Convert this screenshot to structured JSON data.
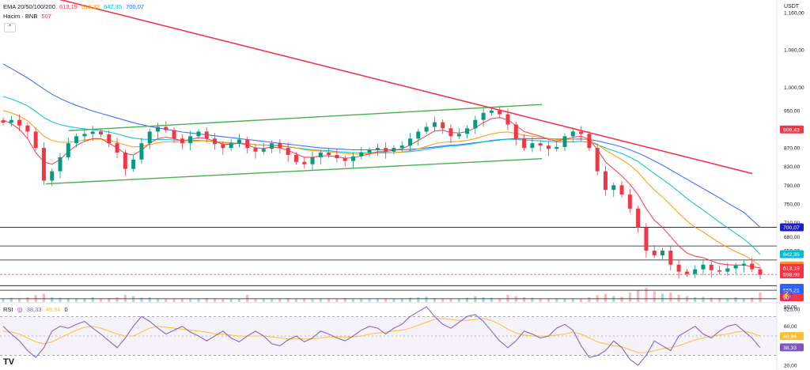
{
  "legend": {
    "ema_title": "EMA 20/50/100/200",
    "ema20": "613,19",
    "ema50": "618,32",
    "ema100": "642,35",
    "ema200": "700,07",
    "volume_title": "Hacim · BNB",
    "volume_value": "507",
    "rsi_title": "RSI",
    "rsi_value": "38,33",
    "rsi_ma_value": "49,94",
    "rsi_extra": "0"
  },
  "collapse_icon": "chevron-up-icon",
  "currency": "USDT",
  "logo": "TV",
  "colors": {
    "up": "#089981",
    "down": "#f23645",
    "ema20": "#f23645",
    "ema50": "#ff9800",
    "ema100": "#00bcd4",
    "ema200": "#2962ff",
    "channel": "#4caf50",
    "trendline": "#f23645",
    "rsi": "#7e57c2",
    "rsi_ma": "#fbc02d"
  },
  "price_axis_ticks": [
    "1.160,00",
    "1.080,00",
    "1.000,00",
    "950,00",
    "870,00",
    "830,00",
    "790,00",
    "750,00",
    "710,00",
    "680,00",
    "650,00",
    "547,00",
    "525,00"
  ],
  "price_tags": [
    {
      "label": "909,43",
      "color": "#f23645"
    },
    {
      "label": "700,07",
      "color": "#1e1ec8"
    },
    {
      "label": "642,35",
      "color": "#00bcd4"
    },
    {
      "label": "618,32",
      "color": "#ff9800"
    },
    {
      "label": "613,19",
      "color": "#f23645"
    },
    {
      "label": "598,99",
      "color": "#f23645"
    },
    {
      "label": "570,57",
      "color": "#2962ff"
    },
    {
      "label": "565,21",
      "color": "#2962ff"
    },
    {
      "label": "507",
      "color": "#f23645"
    }
  ],
  "rsi_axis_ticks": [
    "80,00",
    "60,00",
    "40,00",
    "20,00"
  ],
  "rsi_tags": [
    {
      "label": "49,94",
      "color": "#fbc02d"
    },
    {
      "label": "38,33",
      "color": "#7e57c2"
    }
  ],
  "chart_data": {
    "type": "line",
    "title": "",
    "price_range": [
      540,
      1180
    ],
    "support_resistance_levels": [
      700.07,
      660,
      630,
      598.99,
      575,
      565.21,
      547
    ],
    "ascending_channel": {
      "upper": [
        {
          "x": 0.09,
          "y": 907
        },
        {
          "x": 0.71,
          "y": 963
        }
      ],
      "lower": [
        {
          "x": 0.06,
          "y": 793
        },
        {
          "x": 0.71,
          "y": 847
        }
      ]
    },
    "descending_trendline": [
      {
        "x": 0.0,
        "y": 1220
      },
      {
        "x": 1.0,
        "y": 815
      }
    ],
    "close": [
      924,
      930,
      918,
      905,
      870,
      800,
      820,
      850,
      880,
      895,
      900,
      905,
      899,
      880,
      860,
      825,
      845,
      880,
      905,
      915,
      908,
      890,
      880,
      895,
      905,
      890,
      878,
      870,
      880,
      888,
      870,
      862,
      868,
      880,
      870,
      855,
      840,
      835,
      850,
      860,
      855,
      848,
      842,
      852,
      860,
      865,
      870,
      862,
      870,
      875,
      890,
      905,
      915,
      925,
      912,
      895,
      900,
      912,
      930,
      945,
      950,
      942,
      920,
      890,
      870,
      880,
      875,
      868,
      872,
      895,
      905,
      900,
      870,
      820,
      780,
      790,
      770,
      740,
      700,
      650,
      640,
      650,
      620,
      605,
      600,
      610,
      620,
      608,
      605,
      612,
      618,
      622,
      610,
      598
    ],
    "ema20": [
      930,
      922,
      910,
      890,
      860,
      840,
      835,
      845,
      862,
      875,
      884,
      890,
      890,
      880,
      870,
      858,
      855,
      865,
      880,
      890,
      893,
      890,
      885,
      888,
      892,
      890,
      884,
      878,
      878,
      880,
      876,
      870,
      869,
      872,
      870,
      865,
      857,
      850,
      850,
      853,
      853,
      851,
      848,
      849,
      853,
      857,
      862,
      862,
      865,
      868,
      876,
      886,
      896,
      906,
      908,
      903,
      902,
      905,
      913,
      924,
      933,
      935,
      930,
      918,
      905,
      900,
      895,
      888,
      885,
      888,
      893,
      895,
      888,
      867,
      840,
      825,
      810,
      792,
      770,
      740,
      715,
      700,
      680,
      660,
      645,
      638,
      635,
      628,
      622,
      620,
      619,
      619,
      616,
      613
    ],
    "ema50": [
      950,
      945,
      938,
      928,
      912,
      895,
      886,
      882,
      882,
      884,
      887,
      889,
      889,
      886,
      882,
      876,
      872,
      873,
      877,
      881,
      883,
      883,
      882,
      883,
      885,
      885,
      883,
      881,
      880,
      880,
      879,
      877,
      876,
      876,
      875,
      873,
      870,
      866,
      864,
      863,
      862,
      860,
      858,
      857,
      857,
      858,
      859,
      859,
      860,
      861,
      864,
      868,
      873,
      879,
      882,
      883,
      884,
      886,
      890,
      895,
      900,
      903,
      904,
      901,
      897,
      895,
      893,
      890,
      888,
      888,
      889,
      890,
      887,
      878,
      865,
      855,
      845,
      833,
      818,
      798,
      780,
      765,
      748,
      730,
      714,
      700,
      690,
      678,
      667,
      657,
      648,
      640,
      630,
      618
    ],
    "ema100": [
      980,
      975,
      968,
      960,
      948,
      935,
      926,
      920,
      916,
      913,
      911,
      909,
      907,
      904,
      900,
      895,
      891,
      889,
      888,
      888,
      888,
      887,
      886,
      886,
      886,
      885,
      884,
      882,
      881,
      880,
      879,
      877,
      876,
      875,
      874,
      872,
      870,
      868,
      866,
      865,
      864,
      862,
      861,
      860,
      860,
      860,
      860,
      860,
      860,
      861,
      862,
      864,
      867,
      870,
      872,
      874,
      875,
      877,
      880,
      883,
      886,
      888,
      889,
      888,
      887,
      886,
      885,
      884,
      883,
      883,
      883,
      884,
      882,
      877,
      870,
      864,
      858,
      850,
      841,
      828,
      815,
      803,
      790,
      776,
      762,
      749,
      737,
      724,
      711,
      699,
      687,
      675,
      660,
      642
    ],
    "ema200": [
      1050,
      1040,
      1030,
      1020,
      1008,
      996,
      985,
      976,
      968,
      961,
      955,
      949,
      944,
      939,
      934,
      929,
      924,
      920,
      916,
      913,
      910,
      907,
      904,
      902,
      900,
      898,
      896,
      894,
      892,
      890,
      888,
      886,
      884,
      882,
      880,
      878,
      876,
      874,
      872,
      870,
      869,
      868,
      867,
      866,
      866,
      866,
      866,
      866,
      866,
      866,
      867,
      868,
      870,
      872,
      874,
      876,
      877,
      879,
      881,
      883,
      885,
      887,
      889,
      890,
      890,
      890,
      890,
      890,
      889,
      889,
      889,
      889,
      888,
      885,
      881,
      877,
      872,
      866,
      859,
      851,
      842,
      833,
      823,
      813,
      803,
      793,
      783,
      773,
      763,
      752,
      742,
      732,
      716,
      700
    ],
    "volume": [
      0.15,
      0.18,
      0.14,
      0.2,
      0.3,
      0.35,
      0.2,
      0.18,
      0.16,
      0.15,
      0.14,
      0.2,
      0.14,
      0.16,
      0.2,
      0.3,
      0.25,
      0.18,
      0.2,
      0.15,
      0.14,
      0.13,
      0.15,
      0.12,
      0.14,
      0.16,
      0.14,
      0.12,
      0.13,
      0.15,
      0.3,
      0.14,
      0.12,
      0.13,
      0.15,
      0.16,
      0.13,
      0.15,
      0.12,
      0.14,
      0.13,
      0.15,
      0.17,
      0.12,
      0.13,
      0.14,
      0.15,
      0.13,
      0.14,
      0.15,
      0.18,
      0.2,
      0.22,
      0.16,
      0.15,
      0.14,
      0.15,
      0.18,
      0.25,
      0.2,
      0.18,
      0.15,
      0.3,
      0.25,
      0.2,
      0.18,
      0.15,
      0.14,
      0.16,
      0.15,
      0.14,
      0.13,
      0.2,
      0.3,
      0.35,
      0.25,
      0.22,
      0.4,
      0.5,
      0.6,
      0.45,
      0.35,
      0.4,
      0.3,
      0.25,
      0.2,
      0.22,
      0.18,
      0.16,
      0.15,
      0.2,
      0.15,
      0.18,
      0.4
    ],
    "rsi_range": [
      20,
      80
    ],
    "rsi": [
      60,
      52,
      45,
      35,
      28,
      38,
      55,
      60,
      58,
      62,
      65,
      58,
      52,
      45,
      38,
      48,
      60,
      70,
      65,
      58,
      52,
      56,
      60,
      54,
      50,
      45,
      50,
      55,
      48,
      44,
      50,
      55,
      50,
      42,
      40,
      46,
      50,
      44,
      48,
      55,
      52,
      48,
      45,
      50,
      56,
      60,
      58,
      52,
      58,
      62,
      70,
      75,
      80,
      70,
      62,
      58,
      64,
      70,
      72,
      65,
      55,
      45,
      38,
      45,
      55,
      52,
      48,
      50,
      58,
      62,
      56,
      40,
      28,
      30,
      35,
      45,
      38,
      26,
      20,
      30,
      45,
      40,
      35,
      50,
      55,
      60,
      52,
      48,
      55,
      60,
      62,
      55,
      48,
      38
    ],
    "rsi_ma": [
      55,
      54,
      52,
      48,
      44,
      42,
      44,
      48,
      52,
      56,
      59,
      60,
      58,
      55,
      52,
      50,
      50,
      54,
      58,
      60,
      59,
      58,
      57,
      56,
      55,
      54,
      52,
      52,
      51,
      50,
      50,
      50,
      50,
      49,
      48,
      47,
      47,
      47,
      47,
      48,
      49,
      49,
      49,
      49,
      50,
      52,
      53,
      54,
      55,
      56,
      58,
      61,
      64,
      67,
      68,
      67,
      66,
      66,
      67,
      68,
      66,
      62,
      57,
      53,
      51,
      50,
      50,
      50,
      51,
      52,
      54,
      52,
      48,
      44,
      42,
      40,
      39,
      36,
      33,
      33,
      35,
      37,
      38,
      40,
      43,
      46,
      48,
      50,
      51,
      52,
      54,
      55,
      53,
      49.94
    ]
  }
}
